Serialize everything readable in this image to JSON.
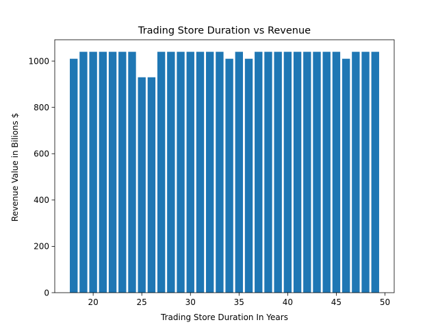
{
  "chart_data": {
    "type": "bar",
    "title": "Trading Store Duration vs Revenue",
    "xlabel": "Trading Store Duration In Years",
    "ylabel": "Revenue Value in Bilions $",
    "x": [
      18,
      19,
      20,
      21,
      22,
      23,
      24,
      25,
      26,
      27,
      28,
      29,
      30,
      31,
      32,
      33,
      34,
      35,
      36,
      37,
      38,
      39,
      40,
      41,
      42,
      43,
      44,
      45,
      46,
      47,
      48,
      49
    ],
    "values": [
      1010,
      1040,
      1040,
      1040,
      1040,
      1040,
      1040,
      930,
      930,
      1040,
      1040,
      1040,
      1040,
      1040,
      1040,
      1040,
      1010,
      1040,
      1010,
      1040,
      1040,
      1040,
      1040,
      1040,
      1040,
      1040,
      1040,
      1040,
      1010,
      1040,
      1040,
      1040
    ],
    "xlim": [
      16.05,
      50.95
    ],
    "ylim": [
      0,
      1092
    ],
    "xticks": [
      20,
      25,
      30,
      35,
      40,
      45,
      50
    ],
    "yticks": [
      0,
      200,
      400,
      600,
      800,
      1000
    ],
    "bar_width": 0.8,
    "bar_color": "#1f77b4",
    "grid": false,
    "legend": "none"
  }
}
